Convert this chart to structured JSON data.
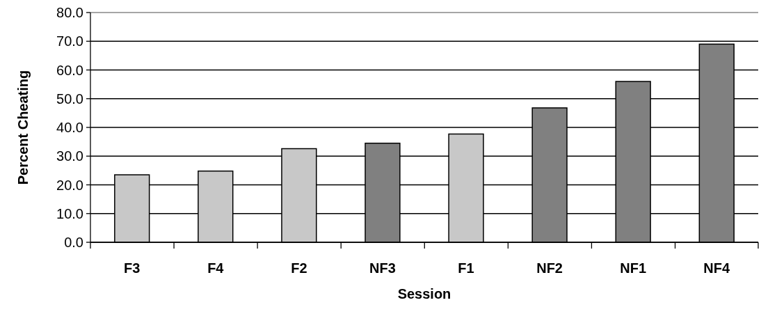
{
  "chart_data": {
    "type": "bar",
    "xlabel": "Session",
    "ylabel": "Percent Cheating",
    "categories": [
      "F3",
      "F4",
      "F2",
      "NF3",
      "F1",
      "NF2",
      "NF1",
      "NF4"
    ],
    "values": [
      23.5,
      24.8,
      32.6,
      34.5,
      37.7,
      46.8,
      56.0,
      69.0
    ],
    "colors": [
      "#c8c8c8",
      "#c8c8c8",
      "#c8c8c8",
      "#808080",
      "#c8c8c8",
      "#808080",
      "#808080",
      "#808080"
    ],
    "ylim": [
      0,
      80
    ],
    "yticks": [
      {
        "value": 0,
        "label": "0.0"
      },
      {
        "value": 10,
        "label": "10.0"
      },
      {
        "value": 20,
        "label": "20.0"
      },
      {
        "value": 30,
        "label": "30.0"
      },
      {
        "value": 40,
        "label": "40.0"
      },
      {
        "value": 50,
        "label": "50.0"
      },
      {
        "value": 60,
        "label": "60.0"
      },
      {
        "value": 70,
        "label": "70.0"
      },
      {
        "value": 80,
        "label": "80.0"
      }
    ],
    "grid": "y"
  }
}
